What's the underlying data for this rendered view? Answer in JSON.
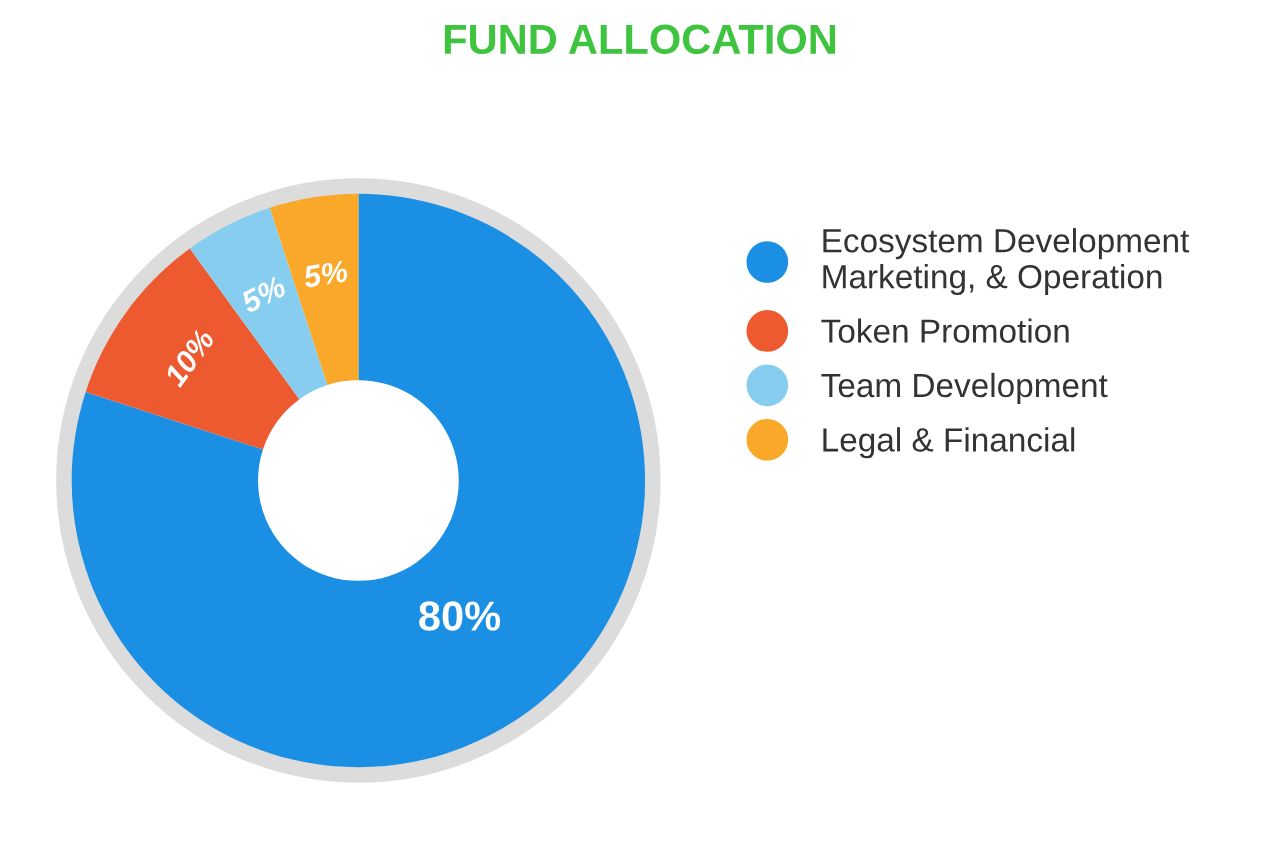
{
  "chart_data": {
    "type": "donut",
    "title": "FUND ALLOCATION",
    "categories": [
      "Ecosystem Development\nMarketing, & Operation",
      "Token Promotion",
      "Team Development",
      "Legal & Financial"
    ],
    "values": [
      80,
      10,
      5,
      5
    ],
    "colors": [
      "#1a8fe3",
      "#ee5a2f",
      "#86cdf0",
      "#f9a82a"
    ],
    "value_labels": [
      "80%",
      "10%",
      "5%",
      "5%"
    ],
    "legend": "right"
  }
}
